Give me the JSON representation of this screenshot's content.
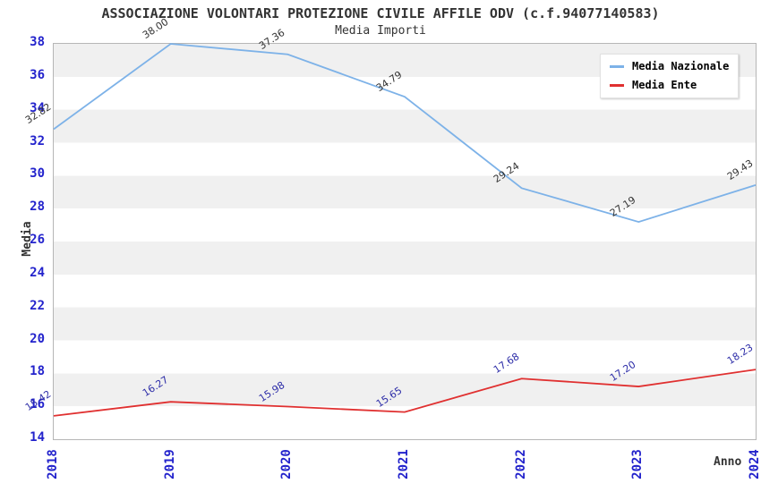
{
  "chart_data": {
    "type": "line",
    "title": "ASSOCIAZIONE VOLONTARI PROTEZIONE CIVILE AFFILE ODV (c.f.94077140583)",
    "subtitle": "Media Importi",
    "xlabel": "Anno",
    "ylabel": "Media",
    "categories": [
      "2018",
      "2019",
      "2020",
      "2021",
      "2022",
      "2023",
      "2024"
    ],
    "series": [
      {
        "name": "Media Nazionale",
        "color": "#7db2e8",
        "label_color": "#333333",
        "values": [
          32.82,
          38.0,
          37.36,
          34.79,
          29.24,
          27.19,
          29.43
        ]
      },
      {
        "name": "Media Ente",
        "color": "#e03030",
        "label_color": "#2d2da8",
        "values": [
          15.42,
          16.27,
          15.98,
          15.65,
          17.68,
          17.2,
          18.23
        ]
      }
    ],
    "ylim": [
      14,
      38
    ],
    "ytick_step": 2,
    "yticks": [
      38,
      36,
      34,
      32,
      30,
      28,
      26,
      24,
      22,
      20,
      18,
      16,
      14
    ],
    "grid": "horizontal-bands",
    "band_colors": [
      "#f0f0f0",
      "#ffffff"
    ],
    "axis_tick_color": "#2323cc",
    "legend_position": "top-right",
    "value_label_decimals": 2
  }
}
